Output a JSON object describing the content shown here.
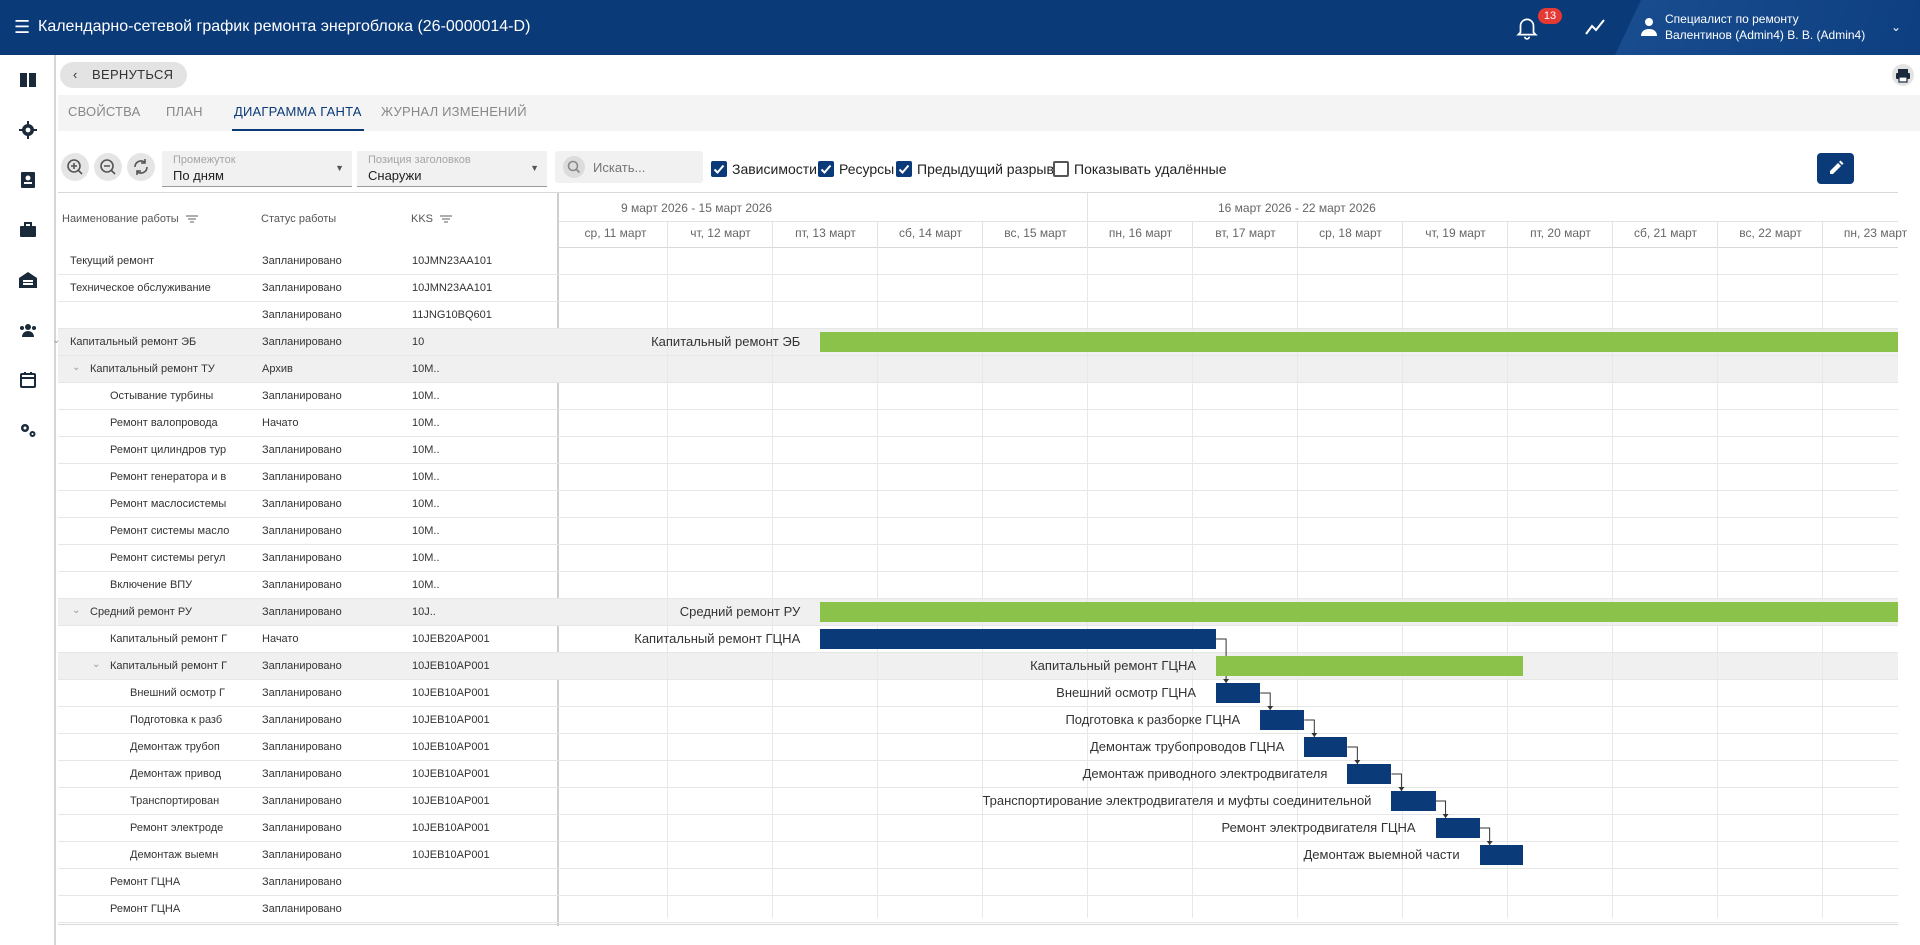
{
  "header": {
    "title": "Календарно-сетевой график ремонта энергоблока (26-0000014-D)",
    "notification_count": "13",
    "user_role": "Специалист по ремонту",
    "user_name": "Валентинов (Admin4) В. В. (Admin4)"
  },
  "sidebar": {
    "items": [
      "book-icon",
      "gear-icon",
      "contact-book-icon",
      "briefcase-icon",
      "warehouse-icon",
      "team-icon",
      "calendar-icon",
      "settings-cogs-icon"
    ]
  },
  "back_label": "ВЕРНУТЬСЯ",
  "tabs": [
    {
      "label": "СВОЙСТВА",
      "active": false
    },
    {
      "label": "ПЛАН",
      "active": false
    },
    {
      "label": "ДИАГРАММА ГАНТА",
      "active": true
    },
    {
      "label": "ЖУРНАЛ ИЗМЕНЕНИЙ",
      "active": false
    }
  ],
  "toolbar": {
    "period_label": "Промежуток",
    "period_value": "По дням",
    "header_pos_label": "Позиция заголовков",
    "header_pos_value": "Снаружи",
    "search_placeholder": "Искать...",
    "checkboxes": [
      {
        "label": "Зависимости",
        "checked": true
      },
      {
        "label": "Ресурсы",
        "checked": true
      },
      {
        "label": "Предыдущий разрыв",
        "checked": true
      },
      {
        "label": "Показывать удалённые",
        "checked": false
      }
    ]
  },
  "columns": {
    "name": "Наименование работы",
    "status": "Статус работы",
    "kks": "KKS"
  },
  "timeline": {
    "weeks": [
      "9 март 2026 - 15 март 2026",
      "16 март 2026 - 22 март 2026"
    ],
    "days": [
      "ср, 11 март",
      "чт, 12 март",
      "пт, 13 март",
      "сб, 14 март",
      "вс, 15 март",
      "пн, 16 март",
      "вт, 17 март",
      "ср, 18 март",
      "чт, 19 март",
      "пт, 20 март",
      "сб, 21 март",
      "вс, 22 март",
      "пн, 23 март"
    ]
  },
  "rows": [
    {
      "name": "Текущий ремонт",
      "status": "Запланировано",
      "kks": "10JMN23AA101",
      "level": 1,
      "group": false
    },
    {
      "name": "Техническое обслуживание",
      "status": "Запланировано",
      "kks": "10JMN23AA101",
      "level": 1,
      "group": false
    },
    {
      "name": "",
      "status": "Запланировано",
      "kks": "11JNG10BQ601",
      "level": 1,
      "group": false
    },
    {
      "name": "Капитальный ремонт ЭБ",
      "status": "Запланировано",
      "kks": "10",
      "level": 1,
      "group": true,
      "expander": true
    },
    {
      "name": "Капитальный ремонт ТУ",
      "status": "Архив",
      "kks": "10M..",
      "level": 2,
      "group": true,
      "expander": true
    },
    {
      "name": "Остывание турбины",
      "status": "Запланировано",
      "kks": "10M..",
      "level": 3,
      "group": false
    },
    {
      "name": "Ремонт валопровода",
      "status": "Начато",
      "kks": "10M..",
      "level": 3,
      "group": false
    },
    {
      "name": "Ремонт цилиндров тур",
      "status": "Запланировано",
      "kks": "10M..",
      "level": 3,
      "group": false
    },
    {
      "name": "Ремонт генератора и в",
      "status": "Запланировано",
      "kks": "10M..",
      "level": 3,
      "group": false
    },
    {
      "name": "Ремонт маслосистемы",
      "status": "Запланировано",
      "kks": "10M..",
      "level": 3,
      "group": false
    },
    {
      "name": "Ремонт системы масло",
      "status": "Запланировано",
      "kks": "10M..",
      "level": 3,
      "group": false
    },
    {
      "name": "Ремонт системы регул",
      "status": "Запланировано",
      "kks": "10M..",
      "level": 3,
      "group": false
    },
    {
      "name": "Включение ВПУ",
      "status": "Запланировано",
      "kks": "10M..",
      "level": 3,
      "group": false
    },
    {
      "name": "Средний ремонт РУ",
      "status": "Запланировано",
      "kks": "10J..",
      "level": 2,
      "group": true,
      "expander": true
    },
    {
      "name": "Капитальный ремонт Г",
      "status": "Начато",
      "kks": "10JEB20AP001",
      "level": 3,
      "group": false
    },
    {
      "name": "Капитальный ремонт Г",
      "status": "Запланировано",
      "kks": "10JEB10AP001",
      "level": 3,
      "group": true,
      "expander": true
    },
    {
      "name": "Внешний осмотр Г",
      "status": "Запланировано",
      "kks": "10JEB10AP001",
      "level": 4,
      "group": false
    },
    {
      "name": "Подготовка к разб",
      "status": "Запланировано",
      "kks": "10JEB10AP001",
      "level": 4,
      "group": false
    },
    {
      "name": "Демонтаж трубоп",
      "status": "Запланировано",
      "kks": "10JEB10AP001",
      "level": 4,
      "group": false
    },
    {
      "name": "Демонтаж привод",
      "status": "Запланировано",
      "kks": "10JEB10AP001",
      "level": 4,
      "group": false
    },
    {
      "name": "Транспортирован",
      "status": "Запланировано",
      "kks": "10JEB10AP001",
      "level": 4,
      "group": false
    },
    {
      "name": "Ремонт электроде",
      "status": "Запланировано",
      "kks": "10JEB10AP001",
      "level": 4,
      "group": false
    },
    {
      "name": "Демонтаж выемн",
      "status": "Запланировано",
      "kks": "10JEB10AP001",
      "level": 4,
      "group": false
    },
    {
      "name": "Ремонт ГЦНА",
      "status": "Запланировано",
      "kks": "",
      "level": 3,
      "group": false
    },
    {
      "name": "Ремонт ГЦНА",
      "status": "Запланировано",
      "kks": "",
      "level": 3,
      "group": false
    }
  ],
  "bars": [
    {
      "row": 3,
      "label": "Капитальный ремонт ЭБ",
      "type": "summary",
      "start_day": 2.45,
      "end_day": 13.1
    },
    {
      "row": 13,
      "label": "Средний ремонт РУ",
      "type": "summary",
      "start_day": 2.45,
      "end_day": 13.1
    },
    {
      "row": 14,
      "label": "Капитальный ремонт ГЦНА",
      "type": "task",
      "start_day": 2.45,
      "end_day": 6.22
    },
    {
      "row": 15,
      "label": "Капитальный ремонт ГЦНА",
      "type": "summary",
      "start_day": 6.22,
      "end_day": 9.14
    },
    {
      "row": 16,
      "label": "Внешний осмотр ГЦНА",
      "type": "task",
      "start_day": 6.22,
      "end_day": 6.64
    },
    {
      "row": 17,
      "label": "Подготовка к разборке ГЦНА",
      "type": "task",
      "start_day": 6.64,
      "end_day": 7.06
    },
    {
      "row": 18,
      "label": "Демонтаж трубопроводов ГЦНА",
      "type": "task",
      "start_day": 7.06,
      "end_day": 7.47
    },
    {
      "row": 19,
      "label": "Демонтаж приводного электродвигателя",
      "type": "task",
      "start_day": 7.47,
      "end_day": 7.89
    },
    {
      "row": 20,
      "label": "Транспортирование электродвигателя и муфты соединительной",
      "type": "task",
      "start_day": 7.89,
      "end_day": 8.31
    },
    {
      "row": 21,
      "label": "Ремонт электродвигателя ГЦНА",
      "type": "task",
      "start_day": 8.31,
      "end_day": 8.73
    },
    {
      "row": 22,
      "label": "Демонтаж выемной части",
      "type": "task",
      "start_day": 8.73,
      "end_day": 9.14
    }
  ],
  "colors": {
    "primary": "#0a3a78",
    "summary_bar": "#8bc34a",
    "badge": "#e53935"
  }
}
